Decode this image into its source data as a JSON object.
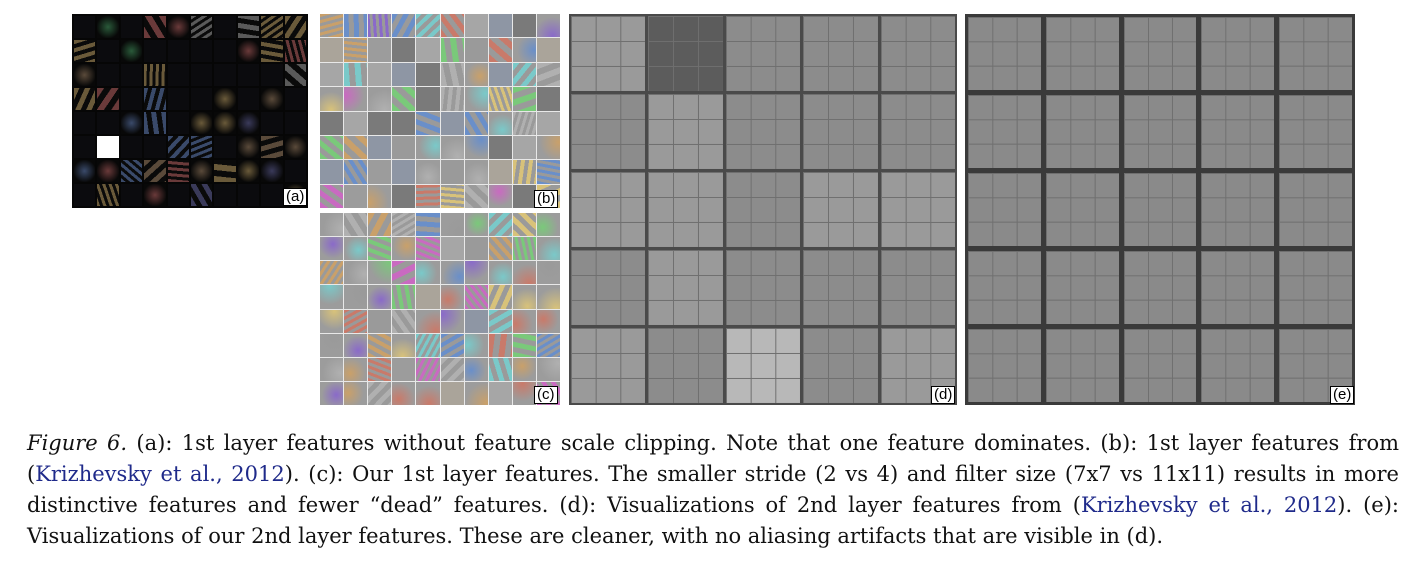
{
  "panels": {
    "a": {
      "label": "(a)"
    },
    "b": {
      "label": "(b)"
    },
    "c": {
      "label": "(c)"
    },
    "d": {
      "label": "(d)"
    },
    "e": {
      "label": "(e)"
    }
  },
  "caption": {
    "figure_label": "Figure 6.",
    "t1": " (a): 1st layer features without feature scale clipping. Note that one feature dominates. (b): 1st layer features from (",
    "cite1": "Krizhevsky et al., 2012",
    "t2": "). (c): Our 1st layer features. The smaller stride (2 vs 4) and filter size (7x7 vs 11x11) results in more distinctive features and fewer “dead” features. (d): Visualizations of 2nd layer features from (",
    "cite2": "Krizhevsky et al., 2012",
    "t3": "). (e): Visualizations of our 2nd layer features. These are cleaner, with no aliasing artifacts that are visible in (d)."
  },
  "colors": {
    "citation": "#1f2a8a",
    "panel_a_bg": "#060606",
    "panel_d_bg": "#4a4a4a",
    "panel_e_bg": "#3a3a3a"
  }
}
